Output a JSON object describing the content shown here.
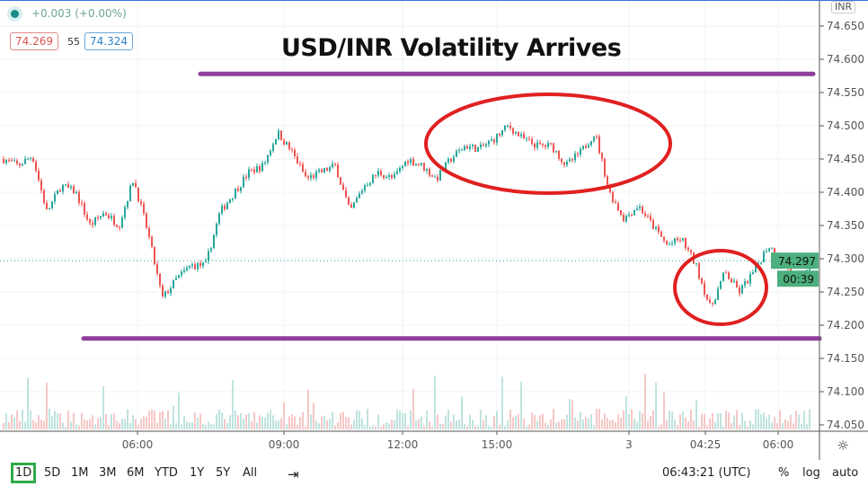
{
  "header": {
    "change": "+0.003 (+0.00%)",
    "bid": "74.269",
    "spread": "55",
    "ask": "74.324",
    "currency": "INR"
  },
  "annotation": {
    "title": "USD/INR Volatility Arrives",
    "line_color": "#8e3f9b",
    "circle_color": "#e02020"
  },
  "colors": {
    "up": "#26a69a",
    "down": "#ef5350",
    "price_label": "#4caf7d"
  },
  "chart_data": {
    "type": "candlestick",
    "title": "USD/INR Volatility Arrives",
    "yticks": [
      "74.650",
      "74.600",
      "74.550",
      "74.500",
      "74.450",
      "74.400",
      "74.350",
      "74.300",
      "74.250",
      "74.200",
      "74.150",
      "74.100",
      "74.050"
    ],
    "ylim": [
      74.04,
      74.665
    ],
    "xticks": [
      "06:00",
      "09:00",
      "12:00",
      "15:00",
      "3",
      "04:25",
      "06:00"
    ],
    "last_price": "74.297",
    "countdown": "00:39",
    "support_level": 74.18,
    "resistance_level": 74.578,
    "approx_close_path": [
      74.45,
      74.44,
      74.455,
      74.37,
      74.41,
      74.4,
      74.35,
      74.37,
      74.35,
      74.42,
      74.34,
      74.24,
      74.27,
      74.29,
      74.29,
      74.37,
      74.4,
      74.43,
      74.44,
      74.49,
      74.46,
      74.42,
      74.43,
      74.44,
      74.37,
      74.41,
      74.43,
      74.42,
      74.45,
      74.44,
      74.42,
      74.45,
      74.47,
      74.465,
      74.48,
      74.5,
      74.48,
      74.47,
      74.47,
      74.44,
      74.46,
      74.49,
      74.4,
      74.36,
      74.38,
      74.35,
      74.32,
      74.33,
      74.29,
      74.225,
      74.28,
      74.25,
      74.28,
      74.32,
      74.3,
      74.26,
      74.297
    ],
    "grid": true
  },
  "toolbar": {
    "ranges": [
      "1D",
      "5D",
      "1M",
      "3M",
      "6M",
      "YTD",
      "1Y",
      "5Y",
      "All"
    ],
    "active": "1D",
    "time": "06:43:21 (UTC)",
    "percent": "%",
    "log": "log",
    "auto": "auto"
  }
}
